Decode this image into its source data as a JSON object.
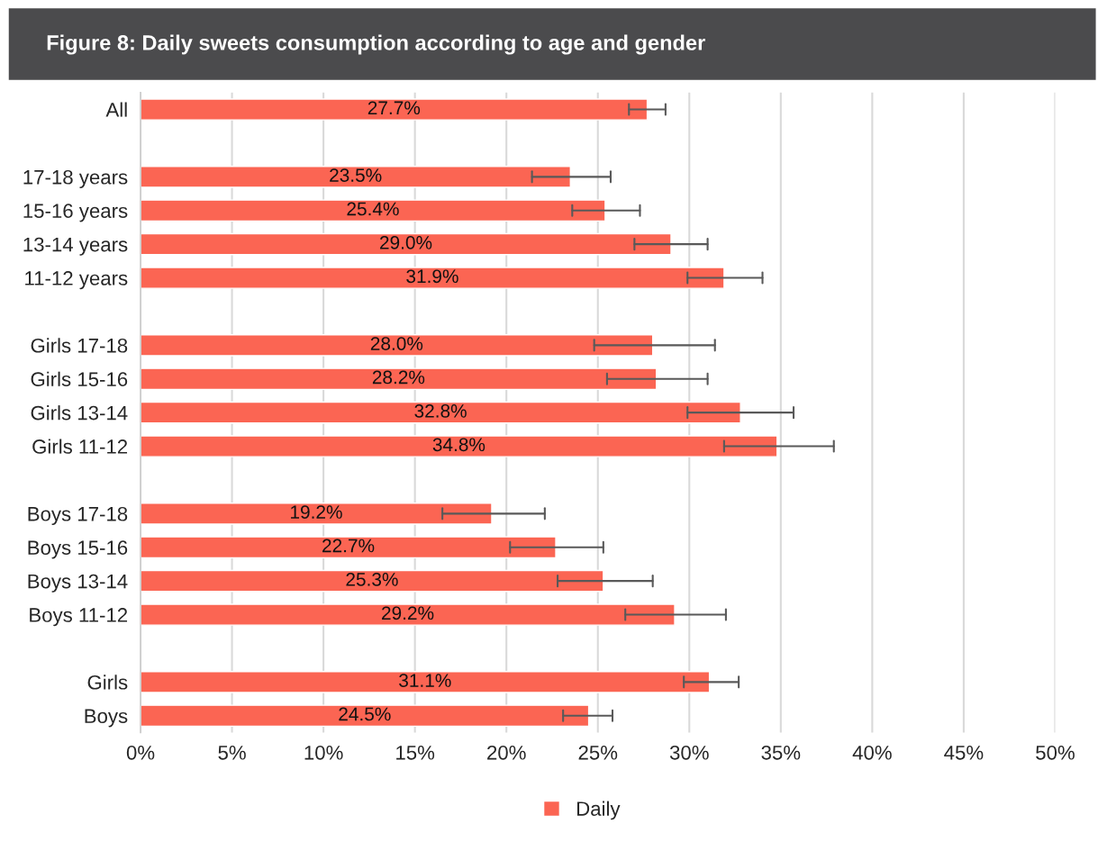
{
  "chart_data": {
    "type": "bar",
    "orientation": "horizontal",
    "title": "Figure 8: Daily sweets consumption according to age and gender",
    "categories": [
      "All",
      null,
      "17-18 years",
      "15-16 years",
      "13-14 years",
      "11-12 years",
      null,
      "Girls 17-18",
      "Girls 15-16",
      "Girls 13-14",
      "Girls 11-12",
      null,
      "Boys 17-18",
      "Boys 15-16",
      "Boys 13-14",
      "Boys 11-12",
      null,
      "Girls",
      "Boys"
    ],
    "series": [
      {
        "name": "Daily",
        "color": "#fb6553",
        "values": [
          27.7,
          null,
          23.5,
          25.4,
          29.0,
          31.9,
          null,
          28.0,
          28.2,
          32.8,
          34.8,
          null,
          19.2,
          22.7,
          25.3,
          29.2,
          null,
          31.1,
          24.5
        ],
        "value_labels": [
          "27.7%",
          null,
          "23.5%",
          "25.4%",
          "29.0%",
          "31.9%",
          null,
          "28.0%",
          "28.2%",
          "32.8%",
          "34.8%",
          null,
          "19.2%",
          "22.7%",
          "25.3%",
          "29.2%",
          null,
          "31.1%",
          "24.5%"
        ],
        "errors": [
          [
            26.7,
            28.7
          ],
          null,
          [
            21.4,
            25.7
          ],
          [
            23.6,
            27.3
          ],
          [
            27.0,
            31.0
          ],
          [
            29.9,
            34.0
          ],
          null,
          [
            24.8,
            31.4
          ],
          [
            25.5,
            31.0
          ],
          [
            29.9,
            35.7
          ],
          [
            31.9,
            37.9
          ],
          null,
          [
            16.5,
            22.1
          ],
          [
            20.2,
            25.3
          ],
          [
            22.8,
            28.0
          ],
          [
            26.5,
            32.0
          ],
          null,
          [
            29.7,
            32.7
          ],
          [
            23.1,
            25.8
          ]
        ]
      }
    ],
    "xlim": [
      0,
      50
    ],
    "xticks": [
      {
        "value": 0,
        "label": "0%"
      },
      {
        "value": 5,
        "label": "5%"
      },
      {
        "value": 10,
        "label": "10%"
      },
      {
        "value": 15,
        "label": "15%"
      },
      {
        "value": 20,
        "label": "20%"
      },
      {
        "value": 25,
        "label": "25%"
      },
      {
        "value": 30,
        "label": "30%"
      },
      {
        "value": 35,
        "label": "35%"
      },
      {
        "value": 40,
        "label": "40%"
      },
      {
        "value": 45,
        "label": "45%"
      },
      {
        "value": 50,
        "label": "50%"
      }
    ],
    "grid": "x",
    "legend": "bottom"
  }
}
